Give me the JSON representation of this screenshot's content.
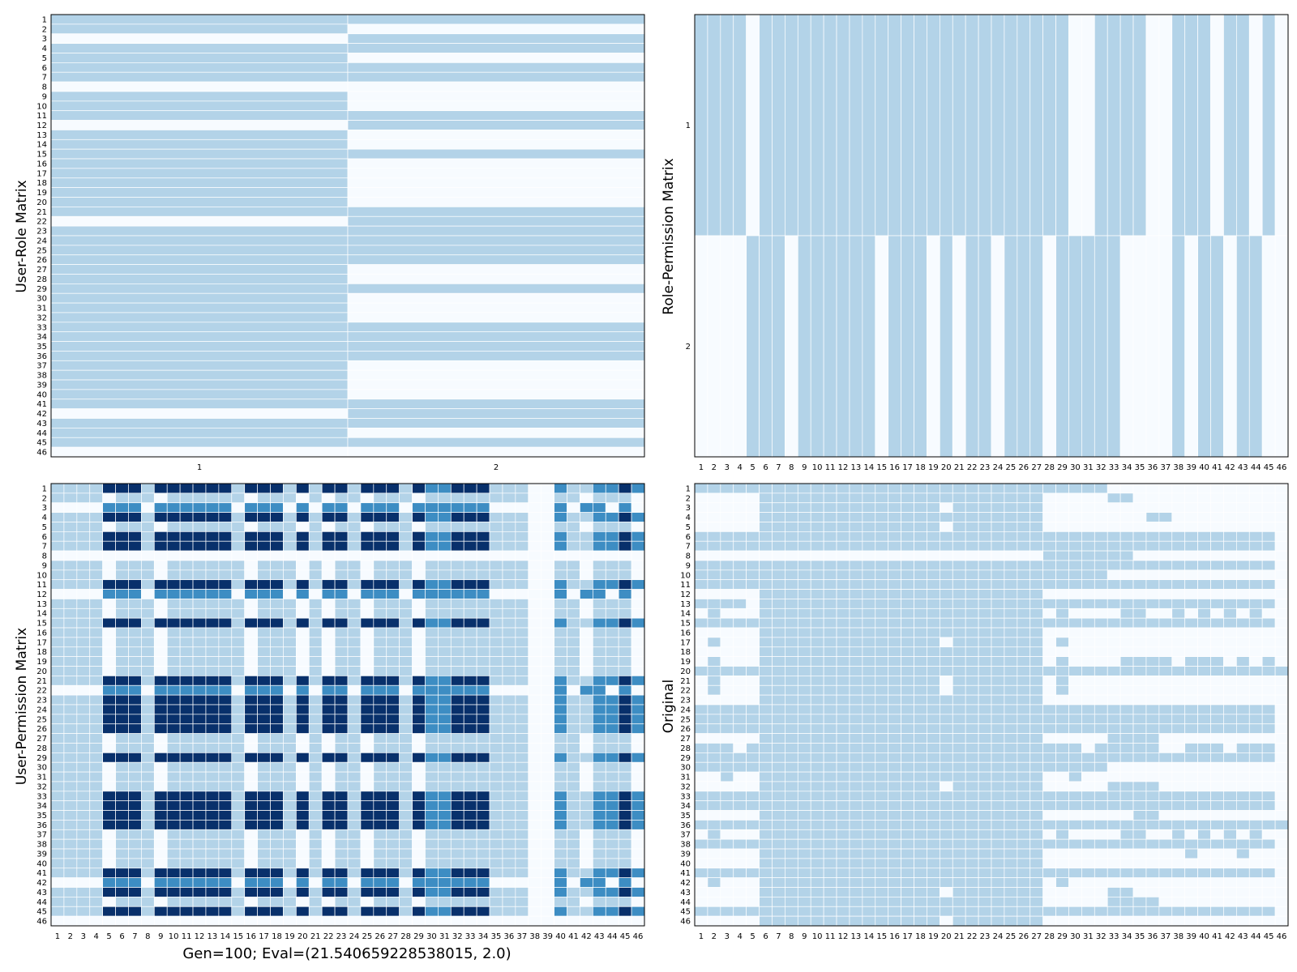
{
  "colors": {
    "off": "#f7fbff",
    "on": "#08306b",
    "level1": "#b3d3e8",
    "level2": "#3d8dc3",
    "grid": "#ffffff",
    "frame": "#000000"
  },
  "caption": "Gen=100; Eval=(21.540659228538015, 2.0)",
  "panels": {
    "user_role": {
      "ylabel": "User-Role Matrix"
    },
    "role_permission": {
      "ylabel": "Role-Permission Matrix"
    },
    "user_permission": {
      "ylabel": "User-Permission Matrix"
    },
    "original": {
      "ylabel": "Original"
    }
  },
  "chart_data": [
    {
      "type": "heatmap",
      "name": "User-Role Matrix",
      "ylabel": "User-Role Matrix",
      "x_categories": [
        "1",
        "2"
      ],
      "y_categories": [
        "1",
        "2",
        "3",
        "4",
        "5",
        "6",
        "7",
        "8",
        "9",
        "10",
        "11",
        "12",
        "13",
        "14",
        "15",
        "16",
        "17",
        "18",
        "19",
        "20",
        "21",
        "22",
        "23",
        "24",
        "25",
        "26",
        "27",
        "28",
        "29",
        "30",
        "31",
        "32",
        "33",
        "34",
        "35",
        "36",
        "37",
        "38",
        "39",
        "40",
        "41",
        "42",
        "43",
        "44",
        "45",
        "46"
      ],
      "values_row_strings": [
        "11",
        "10",
        "01",
        "11",
        "10",
        "11",
        "11",
        "00",
        "10",
        "10",
        "11",
        "01",
        "10",
        "10",
        "11",
        "10",
        "10",
        "10",
        "10",
        "10",
        "11",
        "01",
        "11",
        "11",
        "11",
        "11",
        "10",
        "10",
        "11",
        "10",
        "10",
        "10",
        "11",
        "11",
        "11",
        "11",
        "10",
        "10",
        "10",
        "10",
        "11",
        "01",
        "11",
        "10",
        "11",
        "00"
      ],
      "legend": "none"
    },
    {
      "type": "heatmap",
      "name": "Role-Permission Matrix",
      "ylabel": "Role-Permission Matrix",
      "x_categories": [
        "1",
        "2",
        "3",
        "4",
        "5",
        "6",
        "7",
        "8",
        "9",
        "10",
        "11",
        "12",
        "13",
        "14",
        "15",
        "16",
        "17",
        "18",
        "19",
        "20",
        "21",
        "22",
        "23",
        "24",
        "25",
        "26",
        "27",
        "28",
        "29",
        "30",
        "31",
        "32",
        "33",
        "34",
        "35",
        "36",
        "37",
        "38",
        "39",
        "40",
        "41",
        "42",
        "43",
        "44",
        "45",
        "46"
      ],
      "y_categories": [
        "1",
        "2"
      ],
      "values_row_strings": [
        "1111011111111111111111111111100111100111011010",
        "0000111011111101110101101110111110000101101100"
      ],
      "legend": "none"
    },
    {
      "type": "heatmap",
      "name": "User-Permission Matrix",
      "ylabel": "User-Permission Matrix",
      "xlabel": "Gen=100; Eval=(21.540659228538015, 2.0)",
      "x_categories": [
        "1",
        "2",
        "3",
        "4",
        "5",
        "6",
        "7",
        "8",
        "9",
        "10",
        "11",
        "12",
        "13",
        "14",
        "15",
        "16",
        "17",
        "18",
        "19",
        "20",
        "21",
        "22",
        "23",
        "24",
        "25",
        "26",
        "27",
        "28",
        "29",
        "30",
        "31",
        "32",
        "33",
        "34",
        "35",
        "36",
        "37",
        "38",
        "39",
        "40",
        "41",
        "42",
        "43",
        "44",
        "45",
        "46"
      ],
      "y_categories": [
        "1",
        "2",
        "3",
        "4",
        "5",
        "6",
        "7",
        "8",
        "9",
        "10",
        "11",
        "12",
        "13",
        "14",
        "15",
        "16",
        "17",
        "18",
        "19",
        "20",
        "21",
        "22",
        "23",
        "24",
        "25",
        "26",
        "27",
        "28",
        "29",
        "30",
        "31",
        "32",
        "33",
        "34",
        "35",
        "36",
        "37",
        "38",
        "39",
        "40",
        "41",
        "42",
        "43",
        "44",
        "45",
        "46"
      ],
      "value_levels": "0 = none, 1 = light, 2 = medium, 3 = dark",
      "values_row_strings": [
        "1111333133333313331313313331322333111002112232",
        "1111011101111110111010110111011111111001101110",
        "0000222022222202220202202220222222000002022020",
        "1111333133333313331313313331322333111002112232",
        "1111011101111110111010110111011111111001101110",
        "1111333133333313331313313331322333111002112232",
        "1111333133333313331313313331322333111002112232",
        "0000000000000000000000000000000000000000000000",
        "1111011101111110111010110111011111111001101110",
        "1111011101111110111010110111011111111001101110",
        "1111333133333313331313313331322333111002112232",
        "0000222022222202220202202220222222000002022020",
        "1111011101111110111010110111011111111001101110",
        "1111011101111110111010110111011111111001101110",
        "1111333133333313331313313331322333111002112232",
        "1111011101111110111010110111011111111001101110",
        "1111011101111110111010110111011111111001101110",
        "1111011101111110111010110111011111111001101110",
        "1111011101111110111010110111011111111001101110",
        "1111011101111110111010110111011111111001101110",
        "1111333133333313331313313331322333111002112232",
        "0000222022222202220202202220222222000002022020",
        "1111333133333313331313313331322333111002112232",
        "1111333133333313331313313331322333111002112232",
        "1111333133333313331313313331322333111002112232",
        "1111333133333313331313313331322333111002112232",
        "1111011101111110111010110111011111111001101110",
        "1111011101111110111010110111011111111001101110",
        "1111333133333313331313313331322333111002112232",
        "1111011101111110111010110111011111111001101110",
        "1111011101111110111010110111011111111001101110",
        "1111011101111110111010110111011111111001101110",
        "1111333133333313331313313331322333111002112232",
        "1111333133333313331313313331322333111002112232",
        "1111333133333313331313313331322333111002112232",
        "1111333133333313331313313331322333111002112232",
        "1111011101111110111010110111011111111001101110",
        "1111011101111110111010110111011111111001101110",
        "1111011101111110111010110111011111111001101110",
        "1111011101111110111010110111011111111001101110",
        "1111333133333313331313313331322333111002112232",
        "0000222022222202220202202220222222000002022020",
        "1111333133333313331313313331322333111002112232",
        "1111011101111110111010110111011111111001101110",
        "1111333133333313331313313331322333111002112232",
        "0000000000000000000000000000000000000000000000"
      ],
      "legend": "none"
    },
    {
      "type": "heatmap",
      "name": "Original",
      "ylabel": "Original",
      "x_categories": [
        "1",
        "2",
        "3",
        "4",
        "5",
        "6",
        "7",
        "8",
        "9",
        "10",
        "11",
        "12",
        "13",
        "14",
        "15",
        "16",
        "17",
        "18",
        "19",
        "20",
        "21",
        "22",
        "23",
        "24",
        "25",
        "26",
        "27",
        "28",
        "29",
        "30",
        "31",
        "32",
        "33",
        "34",
        "35",
        "36",
        "37",
        "38",
        "39",
        "40",
        "41",
        "42",
        "43",
        "44",
        "45",
        "46"
      ],
      "y_categories": [
        "1",
        "2",
        "3",
        "4",
        "5",
        "6",
        "7",
        "8",
        "9",
        "10",
        "11",
        "12",
        "13",
        "14",
        "15",
        "16",
        "17",
        "18",
        "19",
        "20",
        "21",
        "22",
        "23",
        "24",
        "25",
        "26",
        "27",
        "28",
        "29",
        "30",
        "31",
        "32",
        "33",
        "34",
        "35",
        "36",
        "37",
        "38",
        "39",
        "40",
        "41",
        "42",
        "43",
        "44",
        "45",
        "46"
      ],
      "values_row_strings": [
        "1111111111111111111111111111111100000000000000",
        "0000011111111111111111111110000011000000000000",
        "0000011111111111111011111110000000000000000000",
        "0000011111111111111111111110000000011000000000",
        "0000011111111111111011111110000000000000000000",
        "1111111111111111111111111111111111111111111110",
        "1111111111111111111111111111111111111111111110",
        "0000000000000000000000000001111111000000000000",
        "1111111111111111111111111111111111111111111110",
        "1111111111111111111111111111111100000000000000",
        "1111111111111111111111111111111111111111111110",
        "0000011111111111111111111110000000000000000000",
        "1111011111111111111111111111111111111111111110",
        "0100011111111111111111111110100001100101010100",
        "1111111111111111111111111111111111111111111110",
        "0000011111111111111111111110000000000000000000",
        "0100011111111111111011111110100000000000000000",
        "0000011111111111111111111110000000000000000000",
        "0100011111111111111111111110100001111011101010",
        "1111111111111111111111111111111111111111111111",
        "0100011111111111111011111110100000000000000000",
        "0100011111111111111011111110100000000000000000",
        "0000011111111111111111111110000000000000000000",
        "1111111111111111111111111111111111111111111110",
        "1111111111111111111111111111111111111111111110",
        "1111111111111111111111111111111111111111111110",
        "0000011111111111111111111110000011110000000000",
        "1110111111111111111111111111110111110011101110",
        "1111111111111111111111111111111111111111111110",
        "1111111111111111111111111111111100000000000000",
        "0010011111111111111111111110010000000000000000",
        "0000011111111111111011111110000011110000000000",
        "1111111111111111111111111111111111111111111110",
        "1111111111111111111111111111111111111111111110",
        "0000011111111111111111111110000000110000000000",
        "1111111111111111111111111111111111111111111111",
        "0100011111111111111111111110100001100101010100",
        "1111111111111111111111111111111111111111111110",
        "0000011111111111111111111110000000000010001000",
        "0000011111111111111111111110000000000000000000",
        "1111111111111111111111111111111111111111111110",
        "0100011111111111111111111110100000000000000000",
        "0000011111111111111011111110000011000000000000",
        "0000011111111111111111111110000011110000000000",
        "1111111111111111111111111111111111111111111110",
        "0000011111111111111011111110000000000000000000"
      ],
      "legend": "none"
    }
  ]
}
